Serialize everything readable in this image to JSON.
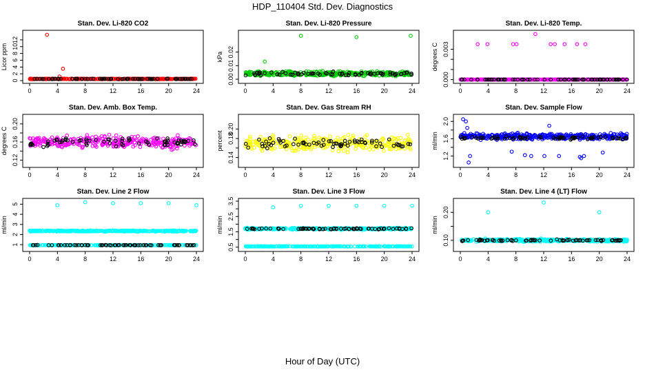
{
  "page_title": "HDP_110404  Std. Dev. Diagnostics",
  "x_axis_title": "Hour of Day (UTC)",
  "chart_data": [
    {
      "type": "scatter",
      "title": "Stan. Dev. Li-820 CO2",
      "ylabel": "Licor ppm",
      "color": "#ff0000",
      "xlim": [
        0,
        24
      ],
      "ylim": [
        0,
        14
      ],
      "xticks": [
        "0",
        "4",
        "8",
        "12",
        "16",
        "20",
        "24"
      ],
      "yticks": [
        0,
        2,
        4,
        6,
        8,
        10,
        12
      ],
      "ytick_labels": [
        "0",
        "2",
        "4",
        "6",
        "8",
        "10",
        "12"
      ],
      "baseline": 0.5,
      "spread": 0.12,
      "outliers": [
        [
          0.1,
          0.6
        ],
        [
          2.5,
          13.5
        ],
        [
          4.8,
          3.5
        ],
        [
          4.3,
          1.2
        ]
      ],
      "black_baseline": 0.5,
      "black_spread": 0.1
    },
    {
      "type": "scatter",
      "title": "Stan. Dev. Li-820 Pressure",
      "ylabel": "kPa",
      "color": "#00cc00",
      "xlim": [
        0,
        24
      ],
      "ylim": [
        -0.001,
        0.034
      ],
      "xticks": [
        "0",
        "4",
        "8",
        "12",
        "16",
        "20",
        "24"
      ],
      "yticks": [
        0,
        0.01,
        0.02
      ],
      "ytick_labels": [
        "0.00",
        "0.01",
        "0.02"
      ],
      "baseline": 0.004,
      "spread": 0.0025,
      "outliers": [
        [
          2.8,
          0.013
        ],
        [
          8,
          0.032
        ],
        [
          16,
          0.031
        ],
        [
          23.8,
          0.032
        ]
      ],
      "black_baseline": 0.004,
      "black_spread": 0.002
    },
    {
      "type": "scatter",
      "title": "Stan. Dev. Li-820 Temp.",
      "ylabel": "degrees C",
      "color": "#ff00ff",
      "xlim": [
        0,
        24
      ],
      "ylim": [
        -0.0001,
        0.0046
      ],
      "xticks": [
        "0",
        "4",
        "8",
        "12",
        "16",
        "20",
        "24"
      ],
      "yticks": [
        0,
        0.001,
        0.002,
        0.003
      ],
      "ytick_labels": [
        "0.000",
        "",
        "",
        "0.003"
      ],
      "baseline": 0,
      "spread": 0,
      "outliers": [
        [
          2.5,
          0.0035
        ],
        [
          3.9,
          0.0035
        ],
        [
          7.6,
          0.0035
        ],
        [
          8.1,
          0.0035
        ],
        [
          10.8,
          0.0045
        ],
        [
          13,
          0.0035
        ],
        [
          13.6,
          0.0035
        ],
        [
          15,
          0.0035
        ],
        [
          16.8,
          0.0035
        ],
        [
          18,
          0.0035
        ]
      ],
      "black_baseline": 0,
      "black_spread": 0
    },
    {
      "type": "scatter",
      "title": "Stan. Dev. Amb. Box Temp.",
      "ylabel": "degrees C",
      "color": "#ff00ff",
      "xlim": [
        0,
        24
      ],
      "ylim": [
        0.11,
        0.215
      ],
      "xticks": [
        "0",
        "4",
        "8",
        "12",
        "16",
        "20",
        "24"
      ],
      "yticks": [
        0.12,
        0.14,
        0.16,
        0.18,
        0.2
      ],
      "ytick_labels": [
        "0.12",
        "",
        "0.16",
        "",
        "0.20"
      ],
      "baseline": 0.16,
      "spread": 0.02,
      "outliers": [],
      "black_baseline": 0.16,
      "black_spread": 0.015
    },
    {
      "type": "scatter",
      "title": "Stan. Dev. Gas Stream RH",
      "ylabel": "percent",
      "color": "#ffff00",
      "xlim": [
        0,
        24
      ],
      "ylim": [
        0.125,
        0.225
      ],
      "xticks": [
        "0",
        "4",
        "8",
        "12",
        "16",
        "20",
        "24"
      ],
      "yticks": [
        0.14,
        0.16,
        0.18,
        0.2
      ],
      "ytick_labels": [
        "0.14",
        "",
        "0.18",
        "0.20"
      ],
      "baseline": 0.17,
      "spread": 0.022,
      "outliers": [],
      "black_baseline": 0.17,
      "black_spread": 0.015
    },
    {
      "type": "scatter",
      "title": "Stan. Dev. Sample Flow",
      "ylabel": "ml/min",
      "color": "#0000ff",
      "xlim": [
        0,
        24
      ],
      "ylim": [
        1,
        2.1
      ],
      "xticks": [
        "0",
        "4",
        "8",
        "12",
        "16",
        "20",
        "24"
      ],
      "yticks": [
        1.2,
        1.4,
        1.6,
        1.8,
        2.0
      ],
      "ytick_labels": [
        "1.2",
        "",
        "1.6",
        "",
        "2.0"
      ],
      "baseline": 1.65,
      "spread": 0.1,
      "outliers": [
        [
          0.4,
          2.05
        ],
        [
          0.8,
          2.0
        ],
        [
          1,
          1.85
        ],
        [
          1.4,
          1.2
        ],
        [
          1.2,
          1.05
        ],
        [
          7.4,
          1.3
        ],
        [
          9.3,
          1.22
        ],
        [
          10.2,
          1.2
        ],
        [
          12.1,
          1.2
        ],
        [
          12.8,
          1.9
        ],
        [
          17.2,
          1.18
        ],
        [
          17.4,
          1.15
        ],
        [
          17.8,
          1.2
        ],
        [
          14.2,
          1.2
        ],
        [
          20.5,
          1.28
        ]
      ],
      "black_baseline": 1.62,
      "black_spread": 0.05
    },
    {
      "type": "scatter",
      "title": "Stan. Dev. Line 2 Flow",
      "ylabel": "ml/min",
      "color": "#00ffff",
      "xlim": [
        0,
        24
      ],
      "ylim": [
        0.6,
        5.3
      ],
      "xticks": [
        "0",
        "4",
        "8",
        "12",
        "16",
        "20",
        "24"
      ],
      "yticks": [
        1,
        2,
        3,
        4,
        5
      ],
      "ytick_labels": [
        "1",
        "2",
        "3",
        "4",
        "5"
      ],
      "baseline": 2.35,
      "spread": 0.08,
      "outliers": [
        [
          4,
          4.9
        ],
        [
          8,
          5.2
        ],
        [
          12,
          5.1
        ],
        [
          16,
          5.1
        ],
        [
          20,
          5.1
        ],
        [
          24,
          4.9
        ]
      ],
      "second_baseline": 0.95,
      "black_baseline": 0.95,
      "black_spread": 0.02
    },
    {
      "type": "scatter",
      "title": "Stan. Dev. Line 3 Flow",
      "ylabel": "ml/min",
      "color": "#00ffff",
      "xlim": [
        0,
        24
      ],
      "ylim": [
        0.4,
        3.5
      ],
      "xticks": [
        "0",
        "4",
        "8",
        "12",
        "16",
        "20",
        "24"
      ],
      "yticks": [
        0.5,
        1.0,
        1.5,
        2.0,
        2.5,
        3.0,
        3.5
      ],
      "ytick_labels": [
        "0.5",
        "",
        "1.5",
        "",
        "2.5",
        "",
        "3.5"
      ],
      "baseline": 1.7,
      "spread": 0.08,
      "outliers": [
        [
          4,
          3.1
        ],
        [
          8,
          3.2
        ],
        [
          12,
          3.2
        ],
        [
          16,
          3.2
        ],
        [
          20,
          3.2
        ],
        [
          24,
          3.2
        ]
      ],
      "second_baseline": 0.55,
      "black_baseline": 1.7,
      "black_spread": 0.06
    },
    {
      "type": "scatter",
      "title": "Stan. Dev. Line 4 (LT) Flow",
      "ylabel": "ml/min",
      "color": "#00ffff",
      "xlim": [
        0,
        24
      ],
      "ylim": [
        0.07,
        0.24
      ],
      "xticks": [
        "0",
        "4",
        "8",
        "12",
        "16",
        "20",
        "24"
      ],
      "yticks": [
        0.1,
        0.15,
        0.2
      ],
      "ytick_labels": [
        "0.10",
        "",
        "0.20"
      ],
      "baseline": 0.1,
      "spread": 0.007,
      "outliers": [
        [
          4,
          0.2
        ],
        [
          12,
          0.235
        ],
        [
          20,
          0.2
        ]
      ],
      "black_baseline": 0.1,
      "black_spread": 0.004
    }
  ]
}
